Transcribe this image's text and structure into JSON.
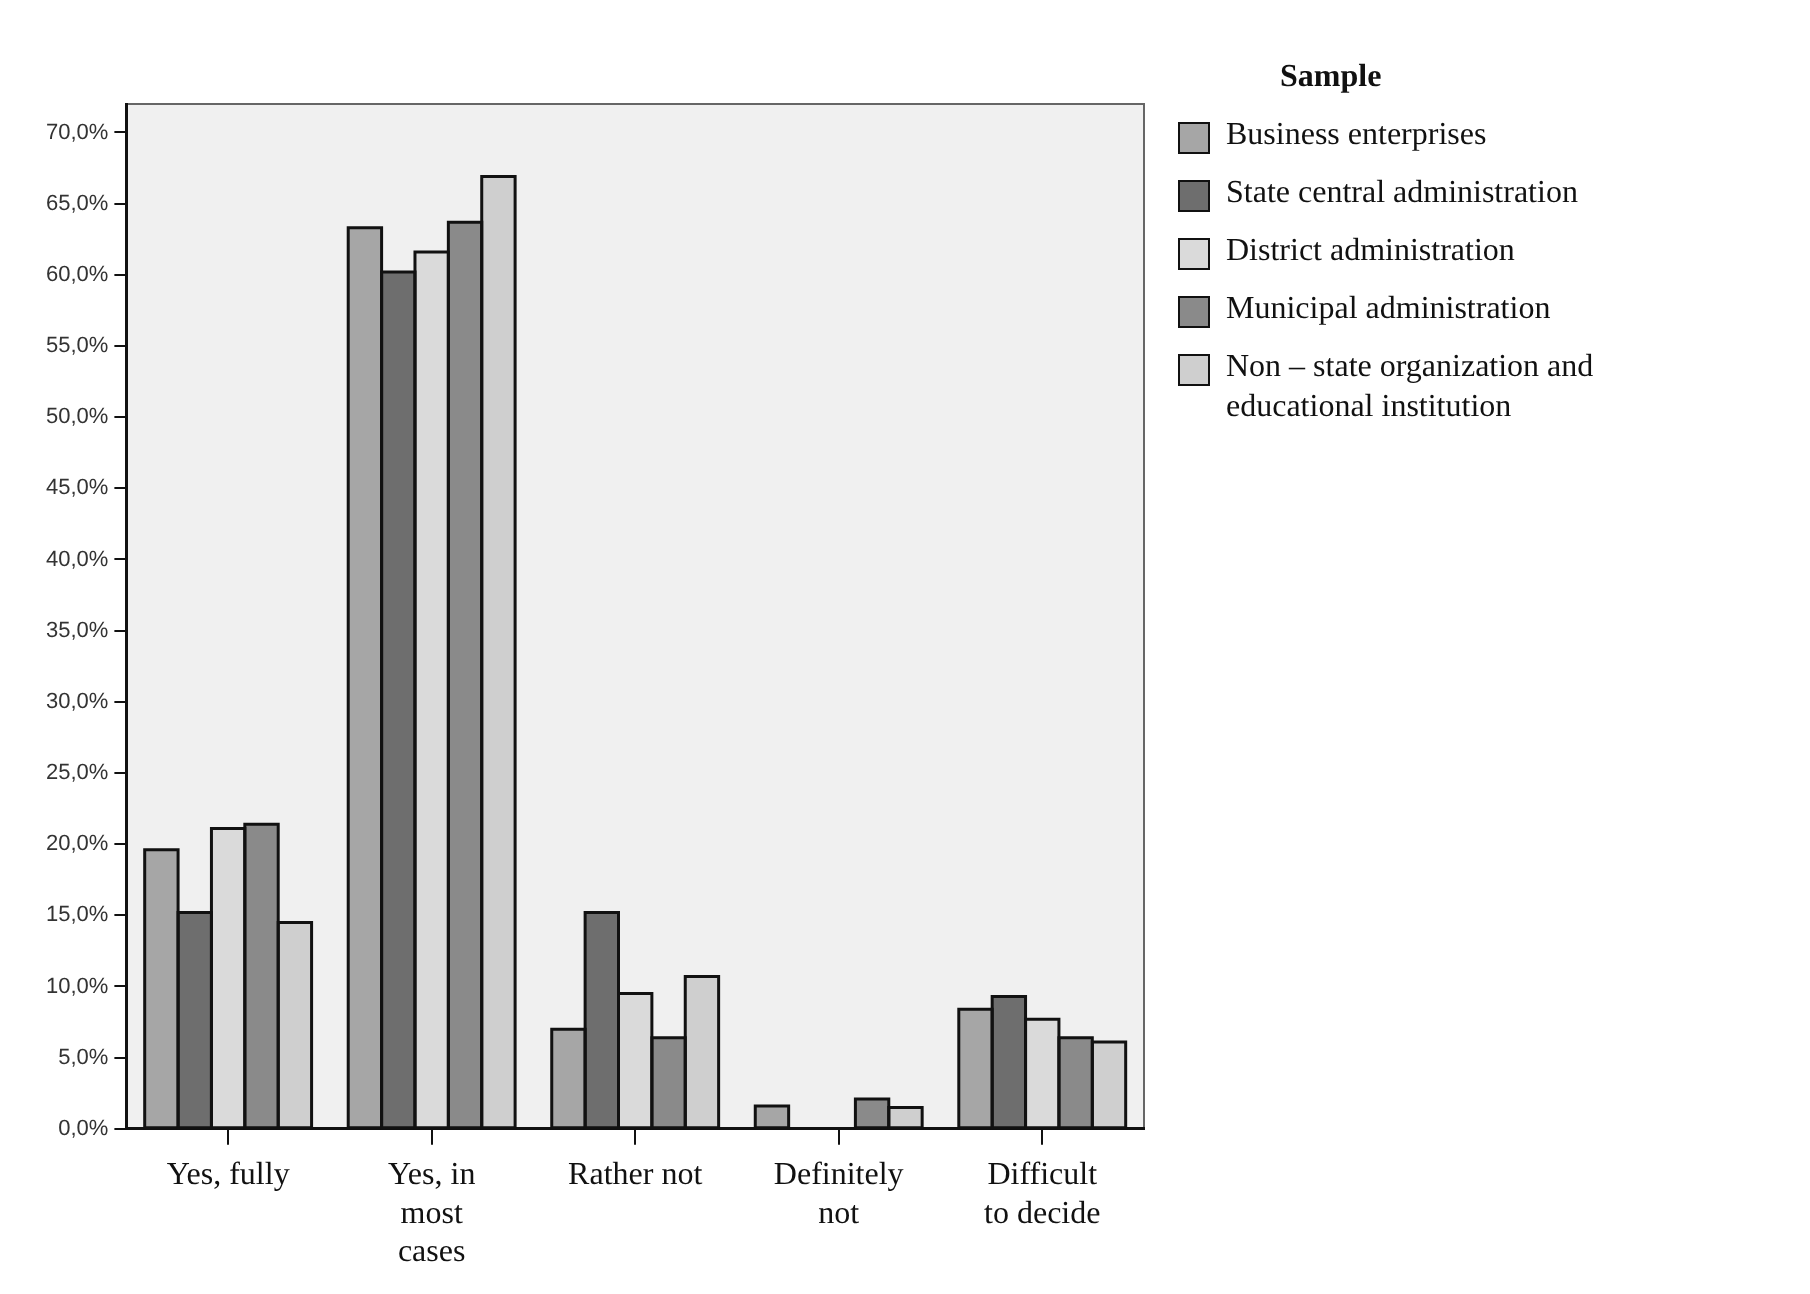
{
  "chart_data": {
    "type": "bar",
    "legend_title": "Sample",
    "legend": "right",
    "grid": false,
    "categories": [
      "Yes, fully",
      "Yes, in most cases",
      "Rather not",
      "Definitely not",
      "Difficult to decide"
    ],
    "series": [
      {
        "name": "Business enterprises",
        "color": "#a6a6a6",
        "values": [
          19.6,
          63.3,
          7.0,
          1.6,
          8.4
        ]
      },
      {
        "name": "State central administration",
        "color": "#6e6e6e",
        "values": [
          15.2,
          60.2,
          15.2,
          0,
          9.3
        ]
      },
      {
        "name": "District administration",
        "color": "#dadada",
        "values": [
          21.1,
          61.6,
          9.5,
          0,
          7.7
        ]
      },
      {
        "name": "Municipal administration",
        "color": "#8a8a8a",
        "values": [
          21.4,
          63.7,
          6.4,
          2.1,
          6.4
        ]
      },
      {
        "name": "Non – state organization and educational institution",
        "color": "#cfcfcf",
        "values": [
          14.5,
          66.9,
          10.7,
          1.5,
          6.1
        ]
      }
    ],
    "ylim": [
      0,
      72
    ],
    "yticks": [
      {
        "value": 0,
        "label": "0,0%"
      },
      {
        "value": 5,
        "label": "5,0%"
      },
      {
        "value": 10,
        "label": "10,0%"
      },
      {
        "value": 15,
        "label": "15,0%"
      },
      {
        "value": 20,
        "label": "20,0%"
      },
      {
        "value": 25,
        "label": "25,0%"
      },
      {
        "value": 30,
        "label": "30,0%"
      },
      {
        "value": 35,
        "label": "35,0%"
      },
      {
        "value": 40,
        "label": "40,0%"
      },
      {
        "value": 45,
        "label": "45,0%"
      },
      {
        "value": 50,
        "label": "50,0%"
      },
      {
        "value": 55,
        "label": "55,0%"
      },
      {
        "value": 60,
        "label": "60,0%"
      },
      {
        "value": 65,
        "label": "65,0%"
      },
      {
        "value": 70,
        "label": "70,0%"
      }
    ]
  }
}
